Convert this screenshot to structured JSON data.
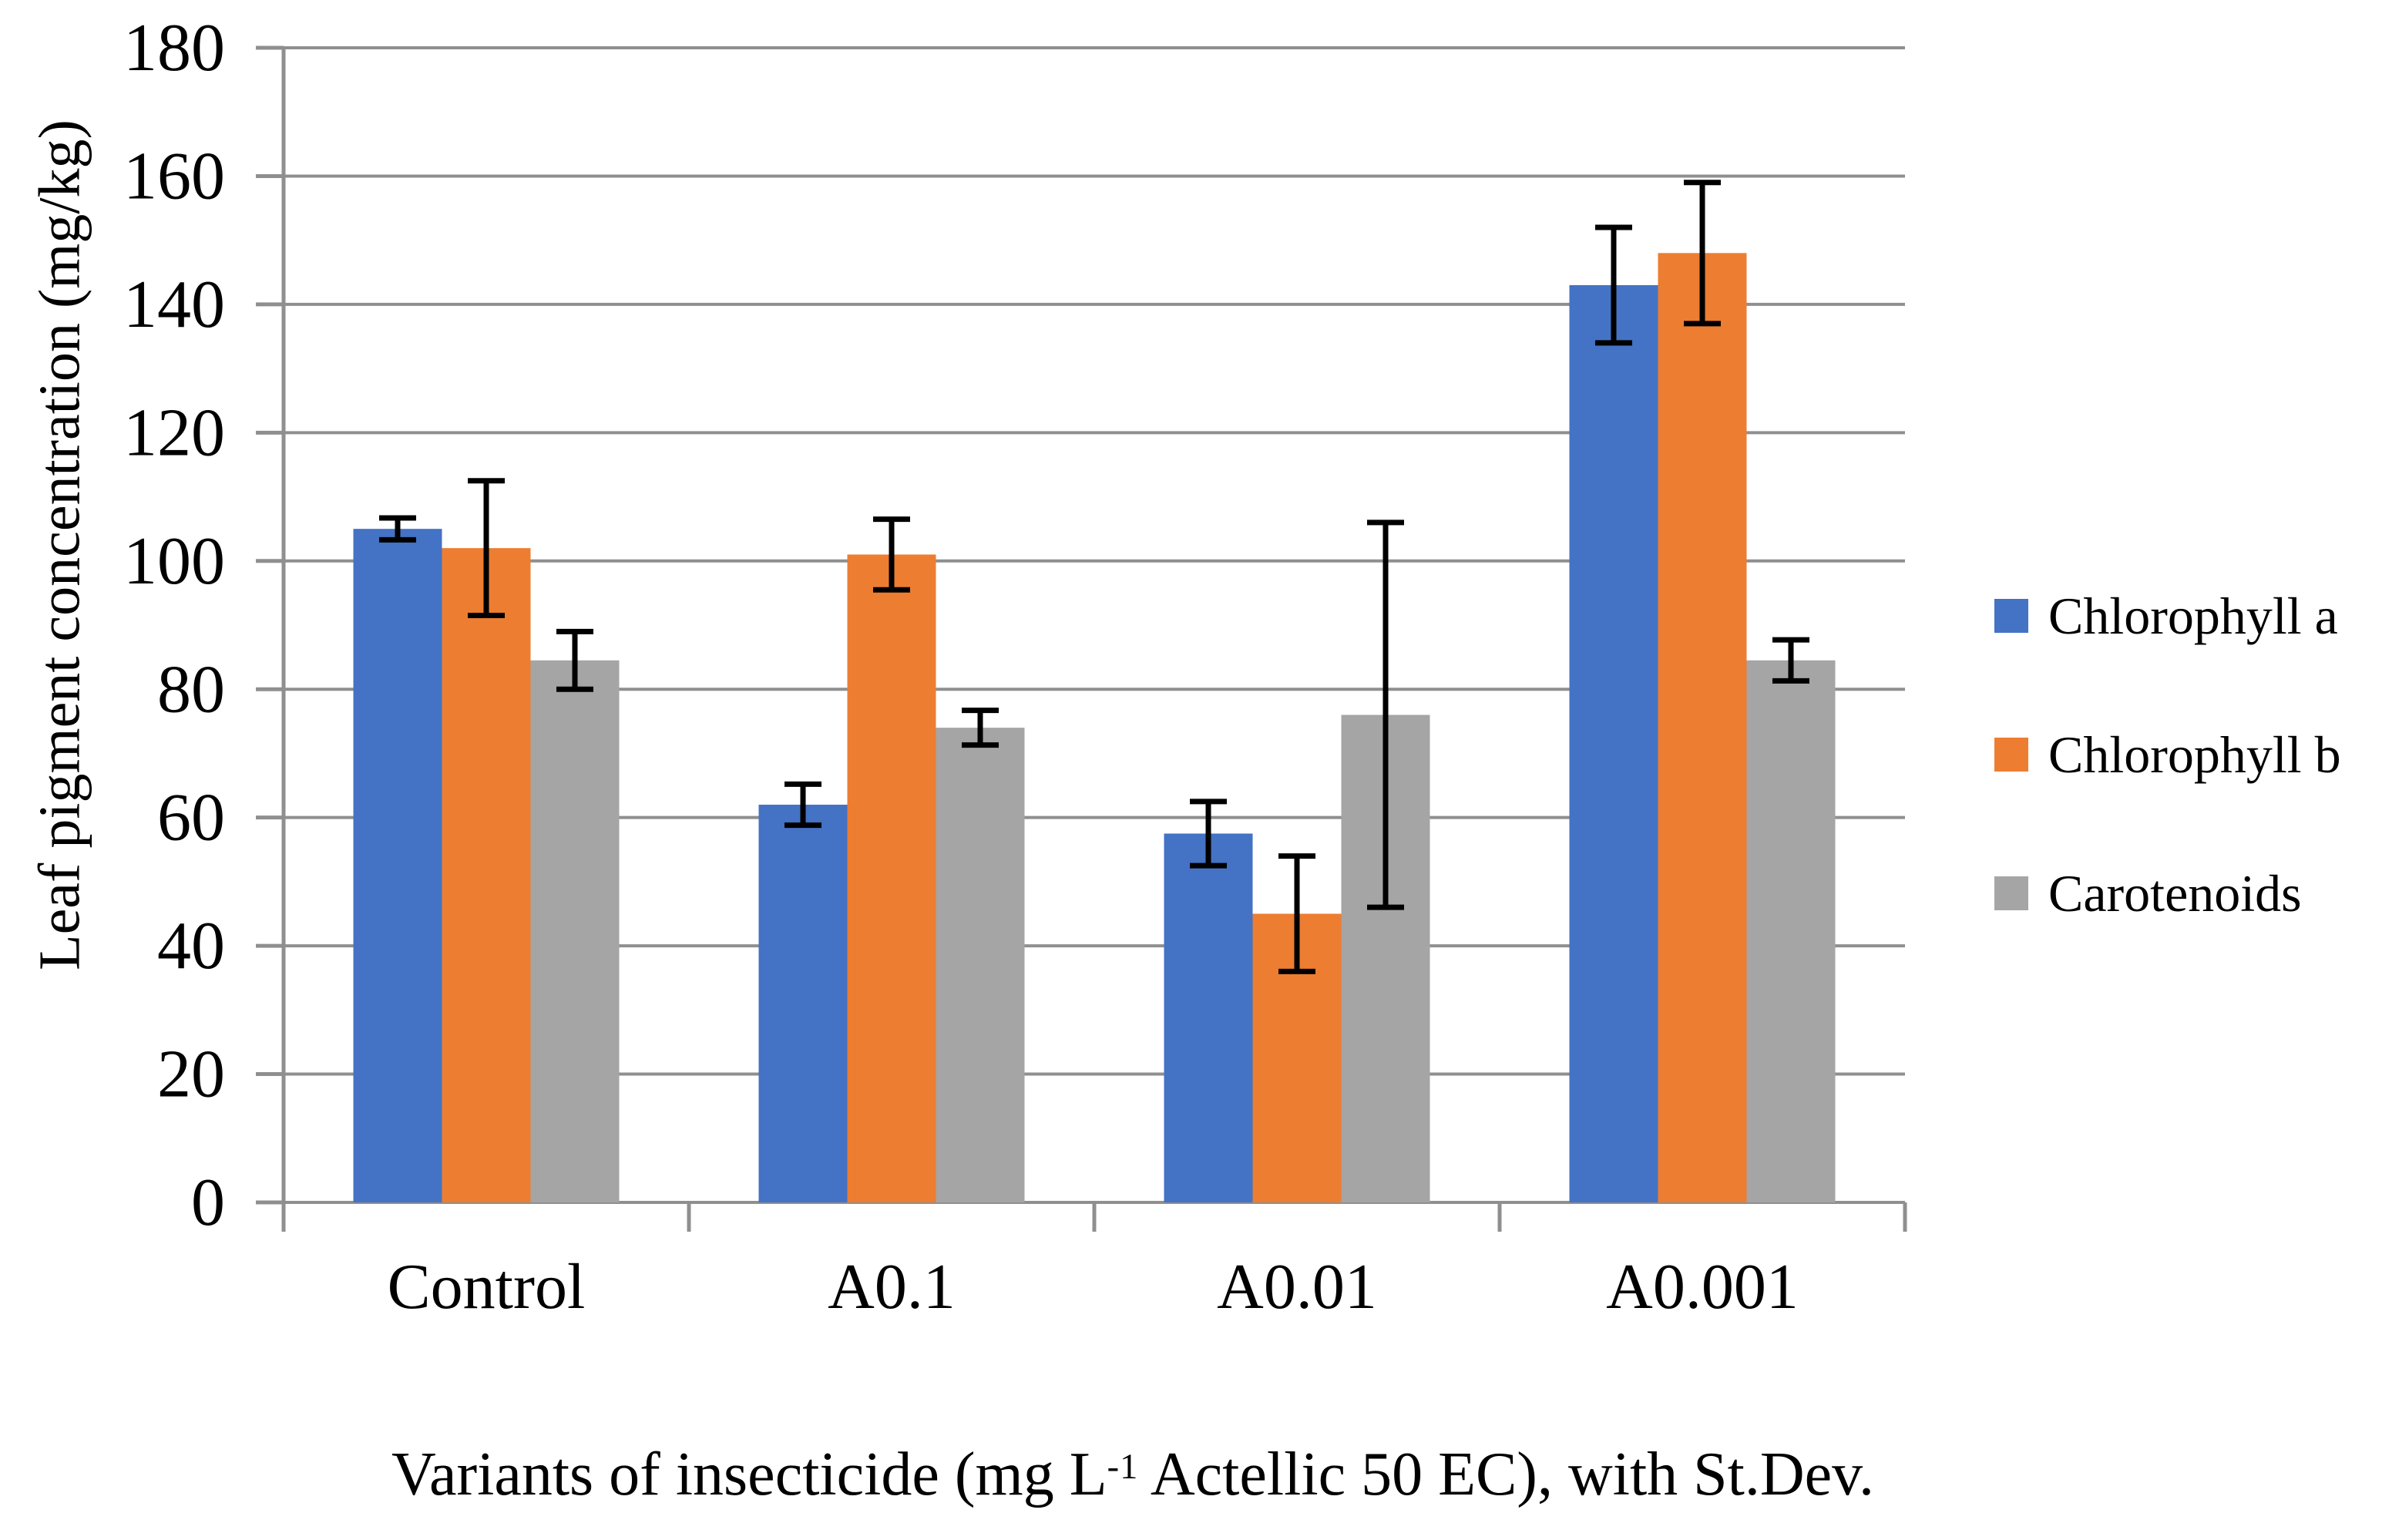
{
  "figure": {
    "background": "#ffffff",
    "text_color": "#000000",
    "gridline_color": "#8f8f8f",
    "axis_color": "#8f8f8f",
    "error_bar_color": "#000000"
  },
  "chart_data": {
    "type": "bar",
    "title": "",
    "xlabel": "Variants of insecticide (mg L⁻¹ Actellic 50 EC), with St.Dev.",
    "xlabel_parts": {
      "prefix": "Variants of insecticide (mg L",
      "superscript": "-1",
      "suffix": " Actellic 50 EC), with St.Dev."
    },
    "ylabel": "Leaf pigment concentration (mg/kg)",
    "ylim": [
      0,
      180
    ],
    "ytick_step": 20,
    "ytick_labels": [
      "0",
      "20",
      "40",
      "60",
      "80",
      "100",
      "120",
      "140",
      "160",
      "180"
    ],
    "categories": [
      "Control",
      "A0.1",
      "A0.01",
      "A0.001"
    ],
    "series": [
      {
        "name": "Chlorophyll a",
        "color": "#4472C4",
        "values": [
          105,
          62,
          57.5,
          143
        ],
        "errors": [
          1.7,
          3.2,
          5.0,
          9.0
        ]
      },
      {
        "name": "Chlorophyll b",
        "color": "#ED7D31",
        "values": [
          102,
          101,
          45,
          148
        ],
        "errors": [
          10.5,
          5.5,
          9.0,
          11.0
        ]
      },
      {
        "name": "Carotenoids",
        "color": "#A5A5A5",
        "values": [
          84.5,
          74,
          76,
          84.5
        ],
        "errors": [
          4.5,
          2.7,
          30.0,
          3.2
        ]
      }
    ],
    "grid": true,
    "error_bars": true,
    "legend_position": "right"
  }
}
